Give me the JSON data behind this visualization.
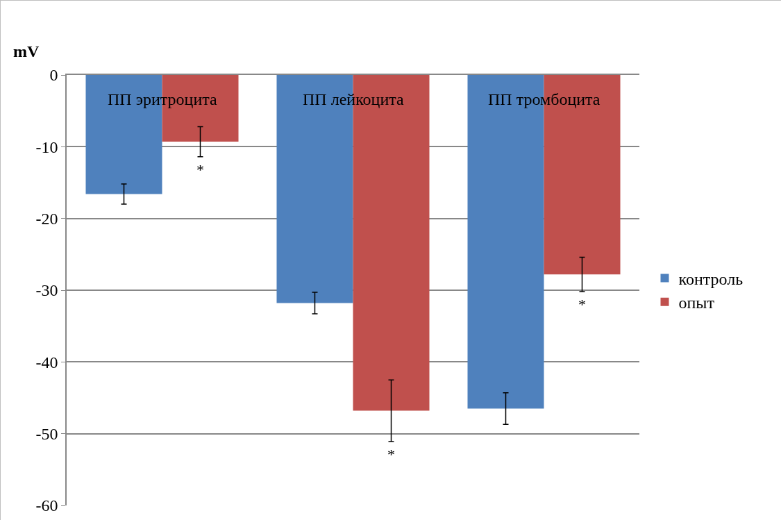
{
  "chart_data": {
    "type": "bar",
    "ylabel": "mV",
    "categories": [
      "ПП эритроцита",
      "ПП лейкоцита",
      "ПП тромбоцита"
    ],
    "series": [
      {
        "name": "контроль",
        "color": "#4f81bd",
        "values": [
          -16.6,
          -31.8,
          -46.5
        ],
        "errors": [
          1.4,
          1.5,
          2.2
        ]
      },
      {
        "name": "опыт",
        "color": "#c0504d",
        "values": [
          -9.3,
          -46.8,
          -27.8
        ],
        "errors": [
          2.1,
          4.3,
          2.4
        ]
      }
    ],
    "annotations": [
      "*",
      "*",
      "*"
    ],
    "ylim": [
      -60,
      0
    ],
    "yticks": [
      -60,
      -50,
      -40,
      -30,
      -20,
      -10,
      0
    ],
    "grid": "y",
    "legend": "right"
  }
}
